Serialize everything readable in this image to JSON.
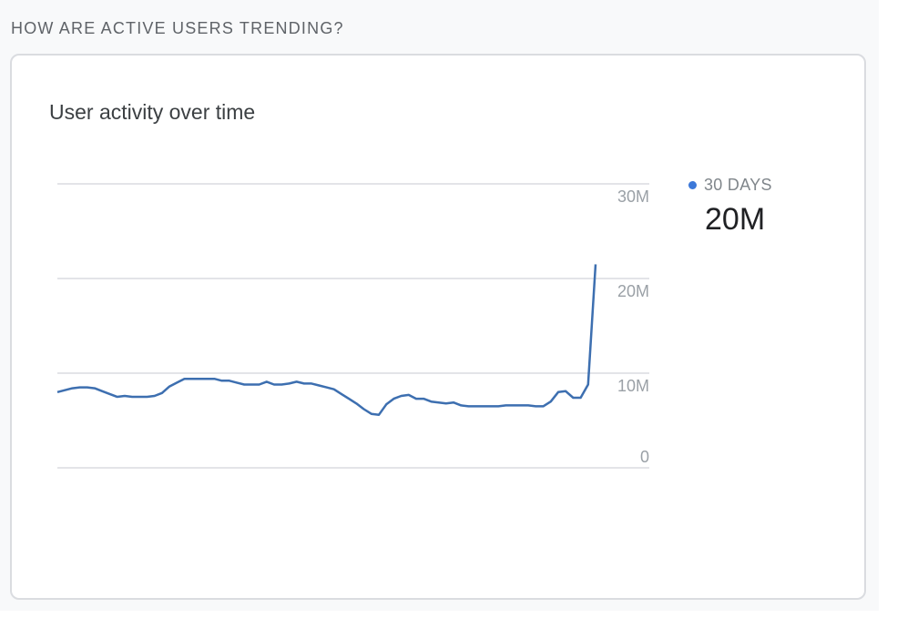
{
  "section": {
    "heading": "HOW ARE ACTIVE USERS TRENDING?"
  },
  "card": {
    "title": "User activity over time",
    "legend": {
      "label": "30 DAYS",
      "value": "20M",
      "color": "#3c78d8"
    }
  },
  "chart_data": {
    "type": "line",
    "title": "User activity over time",
    "xlabel": "",
    "ylabel": "",
    "ylim": [
      0,
      30000000
    ],
    "yticks": [
      {
        "value": 0,
        "label": "0"
      },
      {
        "value": 10000000,
        "label": "10M"
      },
      {
        "value": 20000000,
        "label": "20M"
      },
      {
        "value": 30000000,
        "label": "30M"
      }
    ],
    "grid": true,
    "legend_position": "right",
    "series": [
      {
        "name": "30 DAYS",
        "color": "#3c78d8",
        "values": [
          8.0,
          8.2,
          8.4,
          8.5,
          8.5,
          8.4,
          8.1,
          7.8,
          7.5,
          7.6,
          7.5,
          7.5,
          7.5,
          7.6,
          7.9,
          8.6,
          9.0,
          9.4,
          9.4,
          9.4,
          9.4,
          9.4,
          9.2,
          9.2,
          9.0,
          8.8,
          8.8,
          8.8,
          9.1,
          8.8,
          8.8,
          8.9,
          9.1,
          8.9,
          8.9,
          8.7,
          8.5,
          8.3,
          7.8,
          7.3,
          6.8,
          6.2,
          5.7,
          5.6,
          6.7,
          7.3,
          7.6,
          7.7,
          7.3,
          7.3,
          7.0,
          6.9,
          6.8,
          6.9,
          6.6,
          6.5,
          6.5,
          6.5,
          6.5,
          6.5,
          6.6,
          6.6,
          6.6,
          6.6,
          6.5,
          6.5,
          7.0,
          8.0,
          8.1,
          7.4,
          7.4,
          8.8,
          21.5
        ]
      }
    ]
  }
}
